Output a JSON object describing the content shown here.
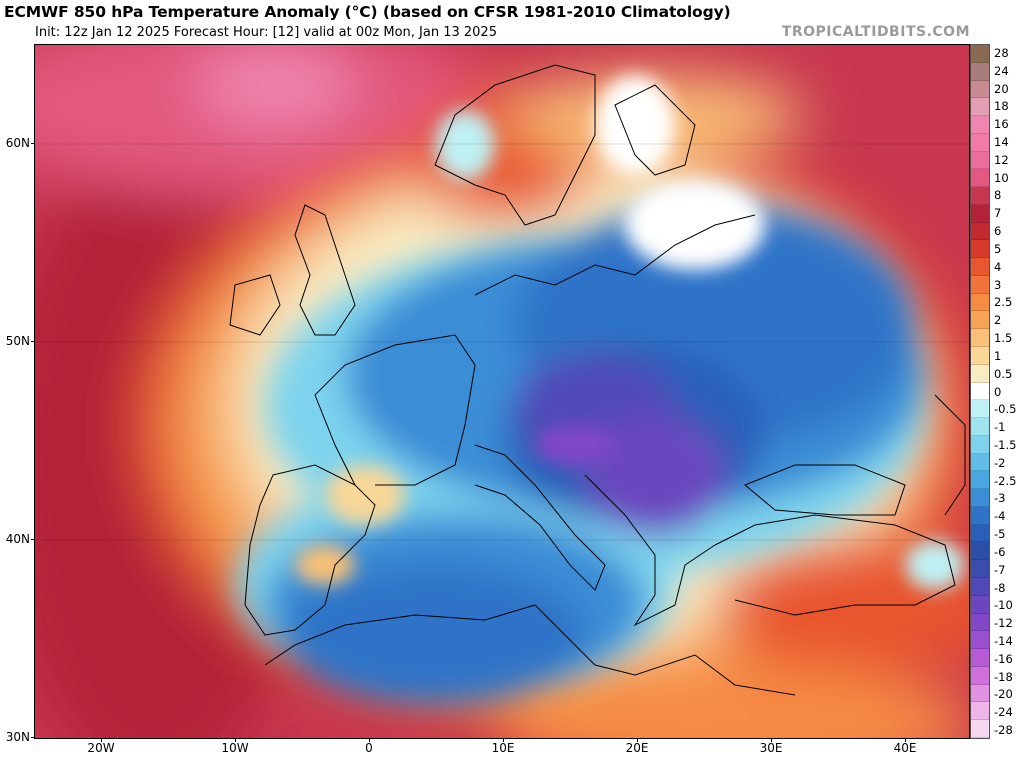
{
  "header": {
    "title": "ECMWF 850 hPa Temperature Anomaly (°C) (based on CFSR 1981-2010 Climatology)",
    "subtitle": "Init: 12z Jan 12 2025   Forecast Hour: [12]   valid at 00z Mon, Jan 13 2025",
    "brand": "TROPICALTIDBITS.COM"
  },
  "axes": {
    "lat_labels": [
      "60N",
      "50N",
      "40N",
      "30N"
    ],
    "lon_labels": [
      "20W",
      "10W",
      "0",
      "10E",
      "20E",
      "30E",
      "40E"
    ]
  },
  "colorbar": {
    "labels": [
      "28",
      "24",
      "20",
      "18",
      "16",
      "14",
      "12",
      "10",
      "8",
      "7",
      "6",
      "5",
      "4",
      "3",
      "2.5",
      "2",
      "1.5",
      "1",
      "0.5",
      "0",
      "-0.5",
      "-1",
      "-1.5",
      "-2",
      "-2.5",
      "-3",
      "-4",
      "-5",
      "-6",
      "-7",
      "-8",
      "-10",
      "-12",
      "-14",
      "-16",
      "-18",
      "-20",
      "-24",
      "-28"
    ],
    "colors": [
      "#8a6a50",
      "#a97d7a",
      "#c98a94",
      "#e3a0b5",
      "#ef85b0",
      "#f27aa8",
      "#ed6d9a",
      "#e2587f",
      "#c8374f",
      "#b42238",
      "#c22a2f",
      "#d83a2c",
      "#e8552f",
      "#f2743a",
      "#f68b44",
      "#f8a457",
      "#f9c077",
      "#f8d797",
      "#f9ecc3",
      "#ffffff",
      "#bff0f3",
      "#9ee4ef",
      "#7dd3ee",
      "#5fbde8",
      "#4aa6e0",
      "#3b8dd6",
      "#2f73c8",
      "#2a5eba",
      "#2b4ea9",
      "#3a4cad",
      "#5148b8",
      "#6a46bf",
      "#8247c6",
      "#9a4ed0",
      "#b65ad5",
      "#cf6fdb",
      "#e191e2",
      "#efb5ea",
      "#f7d7ef"
    ]
  },
  "map": {
    "projection": "equirectangular",
    "lon_range": [
      -25,
      45
    ],
    "lat_range": [
      30,
      65
    ]
  }
}
